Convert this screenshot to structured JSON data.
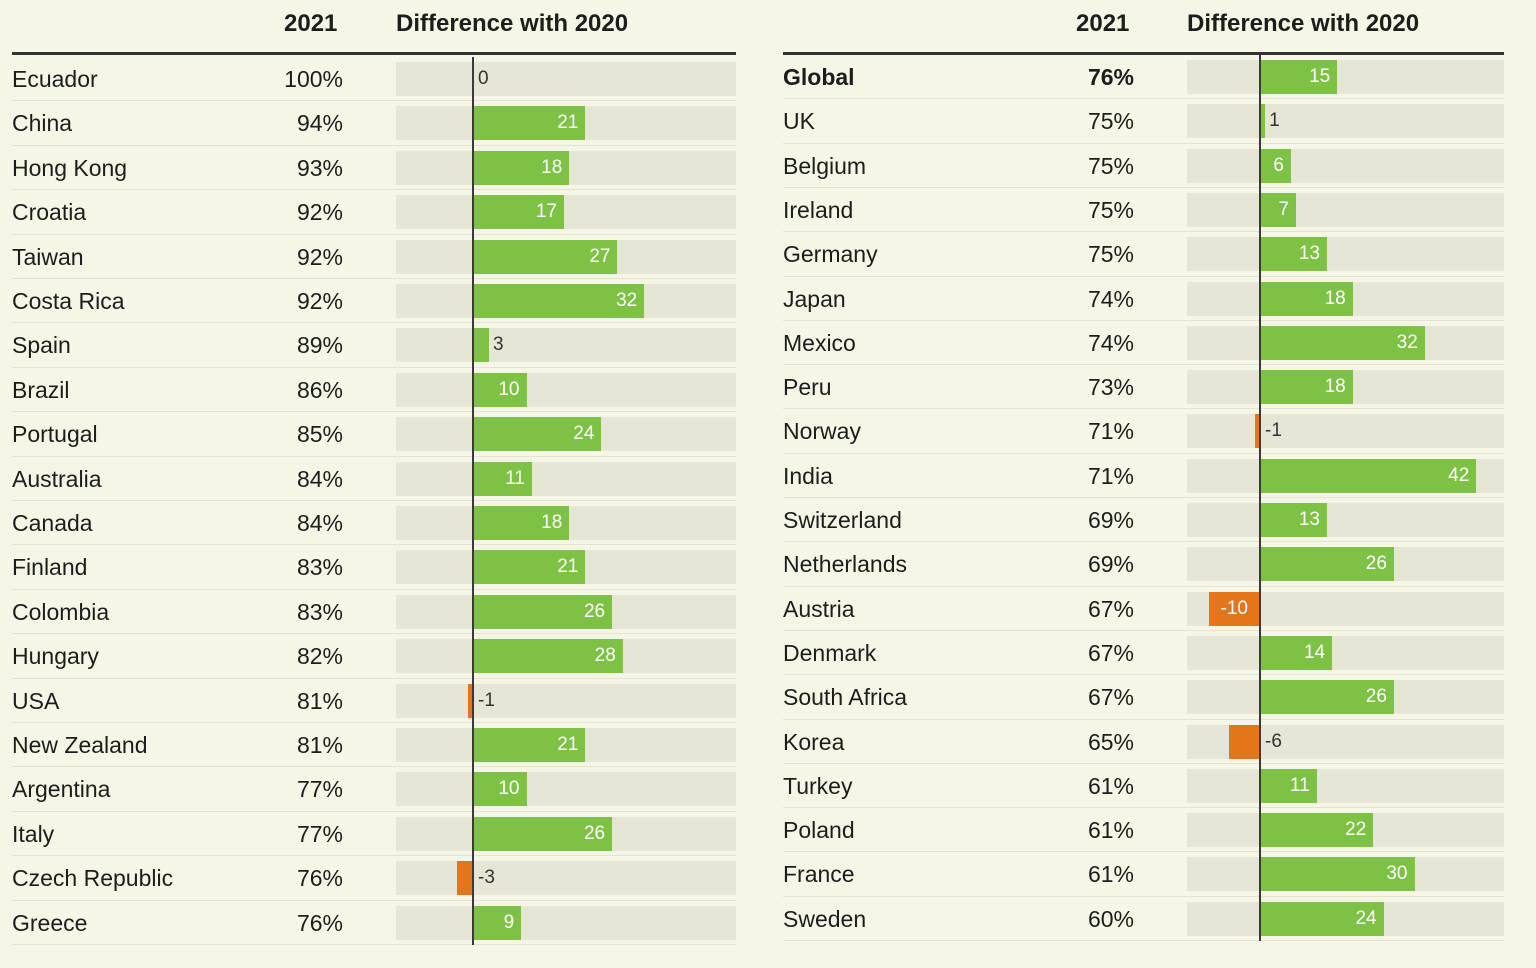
{
  "headers": {
    "year": "2021",
    "diff": "Difference with 2020"
  },
  "colors": {
    "positive": "#7dc244",
    "negative": "#e3761b",
    "track": "#e6e6d6",
    "background": "#f6f6e6"
  },
  "chart_data": [
    {
      "type": "bar",
      "orientation": "horizontal",
      "columns": [
        "2021",
        "Difference with 2020"
      ],
      "xlim": [
        -10,
        35
      ],
      "rows": [
        {
          "country": "Ecuador",
          "value_2021": "100%",
          "diff": 0,
          "diff_label": "0"
        },
        {
          "country": "China",
          "value_2021": "94%",
          "diff": 21,
          "diff_label": "21"
        },
        {
          "country": "Hong Kong",
          "value_2021": "93%",
          "diff": 18,
          "diff_label": "18"
        },
        {
          "country": "Croatia",
          "value_2021": "92%",
          "diff": 17,
          "diff_label": "17"
        },
        {
          "country": "Taiwan",
          "value_2021": "92%",
          "diff": 27,
          "diff_label": "27"
        },
        {
          "country": "Costa Rica",
          "value_2021": "92%",
          "diff": 32,
          "diff_label": "32"
        },
        {
          "country": "Spain",
          "value_2021": "89%",
          "diff": 3,
          "diff_label": "3"
        },
        {
          "country": "Brazil",
          "value_2021": "86%",
          "diff": 10,
          "diff_label": "10"
        },
        {
          "country": "Portugal",
          "value_2021": "85%",
          "diff": 24,
          "diff_label": "24"
        },
        {
          "country": "Australia",
          "value_2021": "84%",
          "diff": 11,
          "diff_label": "11"
        },
        {
          "country": "Canada",
          "value_2021": "84%",
          "diff": 18,
          "diff_label": "18"
        },
        {
          "country": "Finland",
          "value_2021": "83%",
          "diff": 21,
          "diff_label": "21"
        },
        {
          "country": "Colombia",
          "value_2021": "83%",
          "diff": 26,
          "diff_label": "26"
        },
        {
          "country": "Hungary",
          "value_2021": "82%",
          "diff": 28,
          "diff_label": "28"
        },
        {
          "country": "USA",
          "value_2021": "81%",
          "diff": -1,
          "diff_label": "-1"
        },
        {
          "country": "New Zealand",
          "value_2021": "81%",
          "diff": 21,
          "diff_label": "21"
        },
        {
          "country": "Argentina",
          "value_2021": "77%",
          "diff": 10,
          "diff_label": "10"
        },
        {
          "country": "Italy",
          "value_2021": "77%",
          "diff": 26,
          "diff_label": "26"
        },
        {
          "country": "Czech Republic",
          "value_2021": "76%",
          "diff": -3,
          "diff_label": "-3"
        },
        {
          "country": "Greece",
          "value_2021": "76%",
          "diff": 9,
          "diff_label": "9"
        }
      ]
    },
    {
      "type": "bar",
      "orientation": "horizontal",
      "columns": [
        "2021",
        "Difference with 2020"
      ],
      "xlim": [
        -14,
        45
      ],
      "rows": [
        {
          "country": "Global",
          "value_2021": "76%",
          "diff": 15,
          "diff_label": "15",
          "emphasis": true
        },
        {
          "country": "UK",
          "value_2021": "75%",
          "diff": 1,
          "diff_label": "1"
        },
        {
          "country": "Belgium",
          "value_2021": "75%",
          "diff": 6,
          "diff_label": "6"
        },
        {
          "country": "Ireland",
          "value_2021": "75%",
          "diff": 7,
          "diff_label": "7"
        },
        {
          "country": "Germany",
          "value_2021": "75%",
          "diff": 13,
          "diff_label": "13"
        },
        {
          "country": "Japan",
          "value_2021": "74%",
          "diff": 18,
          "diff_label": "18"
        },
        {
          "country": "Mexico",
          "value_2021": "74%",
          "diff": 32,
          "diff_label": "32"
        },
        {
          "country": "Peru",
          "value_2021": "73%",
          "diff": 18,
          "diff_label": "18"
        },
        {
          "country": "Norway",
          "value_2021": "71%",
          "diff": -1,
          "diff_label": "-1"
        },
        {
          "country": "India",
          "value_2021": "71%",
          "diff": 42,
          "diff_label": "42"
        },
        {
          "country": "Switzerland",
          "value_2021": "69%",
          "diff": 13,
          "diff_label": "13"
        },
        {
          "country": "Netherlands",
          "value_2021": "69%",
          "diff": 26,
          "diff_label": "26"
        },
        {
          "country": "Austria",
          "value_2021": "67%",
          "diff": -10,
          "diff_label": "-10"
        },
        {
          "country": "Denmark",
          "value_2021": "67%",
          "diff": 14,
          "diff_label": "14"
        },
        {
          "country": "South Africa",
          "value_2021": "67%",
          "diff": 26,
          "diff_label": "26"
        },
        {
          "country": "Korea",
          "value_2021": "65%",
          "diff": -6,
          "diff_label": "-6"
        },
        {
          "country": "Turkey",
          "value_2021": "61%",
          "diff": 11,
          "diff_label": "11"
        },
        {
          "country": "Poland",
          "value_2021": "61%",
          "diff": 22,
          "diff_label": "22"
        },
        {
          "country": "France",
          "value_2021": "61%",
          "diff": 30,
          "diff_label": "30"
        },
        {
          "country": "Sweden",
          "value_2021": "60%",
          "diff": 24,
          "diff_label": "24"
        }
      ]
    }
  ]
}
